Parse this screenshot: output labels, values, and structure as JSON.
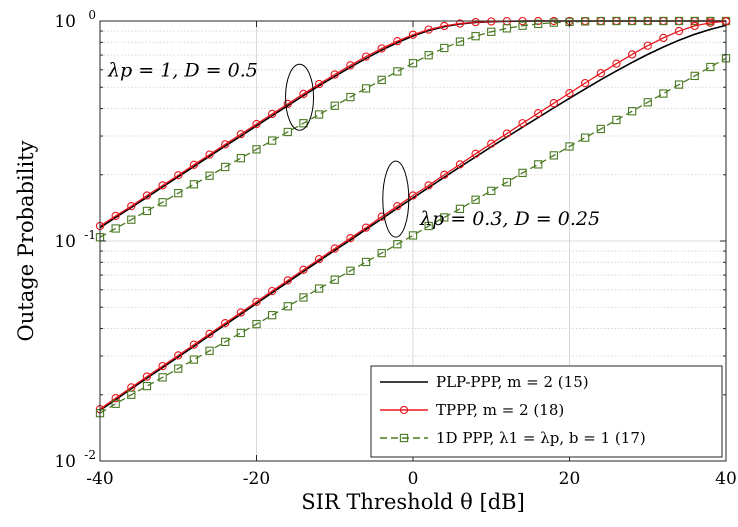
{
  "chart_data": {
    "type": "line",
    "title": "",
    "xlabel": "SIR Threshold θ [dB]",
    "ylabel": "Outage Probability",
    "xlim": [
      -40,
      40
    ],
    "ylim": [
      0.01,
      1
    ],
    "yscale": "log",
    "grid": true,
    "legend_position": "bottom-right",
    "x_ticks": [
      -40,
      -20,
      0,
      20,
      40
    ],
    "x_tick_labels": [
      "-40",
      "-20",
      "0",
      "20",
      "40"
    ],
    "y_ticks": [
      0.01,
      0.1,
      1
    ],
    "y_tick_labels": [
      {
        "base": "10",
        "exp": "-2"
      },
      {
        "base": "10",
        "exp": "-1"
      },
      {
        "base": "10",
        "exp": "0"
      }
    ],
    "annotations": [
      {
        "text": "λp = 1, D = 0.5",
        "x": -32,
        "y": 0.5
      },
      {
        "text": "λp = 0.3, D = 0.25",
        "x": 5,
        "y": 0.125
      }
    ],
    "series": [
      {
        "name": "PLP-PPP, m = 2 (15)",
        "group": "λp = 1, D = 0.5",
        "color": "#000000",
        "style": "solid",
        "marker": "none",
        "x": [
          -40,
          -38,
          -36,
          -34,
          -32,
          -30,
          -28,
          -26,
          -24,
          -22,
          -20,
          -18,
          -16,
          -14,
          -12,
          -10,
          -8,
          -6,
          -4,
          -2,
          0,
          2,
          4,
          6,
          8,
          10,
          12,
          14,
          16,
          18,
          20,
          22,
          24,
          26,
          28,
          30,
          32,
          34,
          36,
          38,
          40
        ],
        "values": [
          0.115,
          0.128,
          0.142,
          0.158,
          0.176,
          0.196,
          0.218,
          0.243,
          0.27,
          0.3,
          0.334,
          0.371,
          0.412,
          0.458,
          0.508,
          0.56,
          0.617,
          0.676,
          0.737,
          0.797,
          0.855,
          0.905,
          0.943,
          0.97,
          0.985,
          0.993,
          0.997,
          0.999,
          1,
          1,
          1,
          1,
          1,
          1,
          1,
          1,
          1,
          1,
          1,
          1,
          1
        ]
      },
      {
        "name": "TPPP, m = 2 (18)",
        "group": "λp = 1, D = 0.5",
        "color": "#e8161c",
        "style": "solid",
        "marker": "circle",
        "x": [
          -40,
          -38,
          -36,
          -34,
          -32,
          -30,
          -28,
          -26,
          -24,
          -22,
          -20,
          -18,
          -16,
          -14,
          -12,
          -10,
          -8,
          -6,
          -4,
          -2,
          0,
          2,
          4,
          6,
          8,
          10,
          12,
          14,
          16,
          18,
          20,
          22,
          24,
          26,
          28,
          30,
          32,
          34,
          36,
          38,
          40
        ],
        "values": [
          0.117,
          0.13,
          0.144,
          0.161,
          0.179,
          0.199,
          0.222,
          0.247,
          0.275,
          0.306,
          0.34,
          0.378,
          0.42,
          0.466,
          0.517,
          0.571,
          0.629,
          0.689,
          0.75,
          0.81,
          0.866,
          0.914,
          0.95,
          0.974,
          0.988,
          0.995,
          0.998,
          0.999,
          1,
          1,
          1,
          1,
          1,
          1,
          1,
          1,
          1,
          1,
          1,
          1,
          1
        ]
      },
      {
        "name": "1D PPP, λ1 = λp, b = 1 (17)",
        "group": "λp = 1, D = 0.5",
        "color": "#4a7a22",
        "style": "dashed",
        "marker": "square",
        "x": [
          -40,
          -38,
          -36,
          -34,
          -32,
          -30,
          -28,
          -26,
          -24,
          -22,
          -20,
          -18,
          -16,
          -14,
          -12,
          -10,
          -8,
          -6,
          -4,
          -2,
          0,
          2,
          4,
          6,
          8,
          10,
          12,
          14,
          16,
          18,
          20,
          22,
          24,
          26,
          28,
          30,
          32,
          34,
          36,
          38,
          40
        ],
        "values": [
          0.104,
          0.114,
          0.125,
          0.137,
          0.15,
          0.165,
          0.181,
          0.198,
          0.217,
          0.238,
          0.261,
          0.286,
          0.313,
          0.343,
          0.376,
          0.412,
          0.451,
          0.494,
          0.54,
          0.59,
          0.643,
          0.699,
          0.754,
          0.806,
          0.853,
          0.893,
          0.926,
          0.952,
          0.97,
          0.983,
          0.991,
          0.996,
          0.999,
          1,
          1,
          1,
          1,
          1,
          1,
          1,
          1
        ]
      },
      {
        "name": "PLP-PPP, m = 2 (15)",
        "group": "λp = 0.3, D = 0.25",
        "color": "#000000",
        "style": "solid",
        "marker": "none",
        "x": [
          -40,
          -38,
          -36,
          -34,
          -32,
          -30,
          -28,
          -26,
          -24,
          -22,
          -20,
          -18,
          -16,
          -14,
          -12,
          -10,
          -8,
          -6,
          -4,
          -2,
          0,
          2,
          4,
          6,
          8,
          10,
          12,
          14,
          16,
          18,
          20,
          22,
          24,
          26,
          28,
          30,
          32,
          34,
          36,
          38,
          40
        ],
        "values": [
          0.017,
          0.019,
          0.0213,
          0.0238,
          0.0266,
          0.0297,
          0.0332,
          0.0372,
          0.0416,
          0.0465,
          0.052,
          0.0582,
          0.065,
          0.0727,
          0.0812,
          0.0907,
          0.101,
          0.113,
          0.126,
          0.141,
          0.157,
          0.175,
          0.195,
          0.217,
          0.241,
          0.268,
          0.297,
          0.329,
          0.364,
          0.403,
          0.445,
          0.491,
          0.541,
          0.593,
          0.648,
          0.705,
          0.762,
          0.818,
          0.87,
          0.916,
          0.955
        ]
      },
      {
        "name": "TPPP, m = 2 (18)",
        "group": "λp = 0.3, D = 0.25",
        "color": "#e8161c",
        "style": "solid",
        "marker": "circle",
        "x": [
          -40,
          -38,
          -36,
          -34,
          -32,
          -30,
          -28,
          -26,
          -24,
          -22,
          -20,
          -18,
          -16,
          -14,
          -12,
          -10,
          -8,
          -6,
          -4,
          -2,
          0,
          2,
          4,
          6,
          8,
          10,
          12,
          14,
          16,
          18,
          20,
          22,
          24,
          26,
          28,
          30,
          32,
          34,
          36,
          38,
          40
        ],
        "values": [
          0.0172,
          0.0193,
          0.0216,
          0.0242,
          0.027,
          0.0302,
          0.0338,
          0.0378,
          0.0423,
          0.0473,
          0.0529,
          0.0592,
          0.0662,
          0.074,
          0.0827,
          0.0924,
          0.103,
          0.115,
          0.129,
          0.144,
          0.161,
          0.179,
          0.2,
          0.223,
          0.249,
          0.277,
          0.308,
          0.343,
          0.381,
          0.423,
          0.47,
          0.522,
          0.579,
          0.64,
          0.705,
          0.772,
          0.838,
          0.9,
          0.95,
          0.982,
          0.996
        ]
      },
      {
        "name": "1D PPP, λ1 = λp, b = 1 (17)",
        "group": "λp = 0.3, D = 0.25",
        "color": "#4a7a22",
        "style": "dashed",
        "marker": "square",
        "x": [
          -40,
          -38,
          -36,
          -34,
          -32,
          -30,
          -28,
          -26,
          -24,
          -22,
          -20,
          -18,
          -16,
          -14,
          -12,
          -10,
          -8,
          -6,
          -4,
          -2,
          0,
          2,
          4,
          6,
          8,
          10,
          12,
          14,
          16,
          18,
          20,
          22,
          24,
          26,
          28,
          30,
          32,
          34,
          36,
          38,
          40
        ],
        "values": [
          0.0165,
          0.0182,
          0.02,
          0.0219,
          0.024,
          0.0263,
          0.0289,
          0.0317,
          0.0348,
          0.0382,
          0.0419,
          0.046,
          0.0505,
          0.0554,
          0.0608,
          0.0667,
          0.0732,
          0.0803,
          0.0881,
          0.0967,
          0.106,
          0.117,
          0.128,
          0.14,
          0.154,
          0.169,
          0.185,
          0.204,
          0.223,
          0.245,
          0.269,
          0.295,
          0.323,
          0.355,
          0.389,
          0.427,
          0.468,
          0.514,
          0.563,
          0.618,
          0.677
        ]
      }
    ]
  },
  "legend": {
    "items": [
      {
        "label": "PLP-PPP, m = 2 (15)",
        "color": "#000000",
        "style": "solid",
        "marker": "none"
      },
      {
        "label": "TPPP, m = 2 (18)",
        "color": "#e8161c",
        "style": "solid",
        "marker": "circle"
      },
      {
        "label": "1D PPP, λ1 = λp, b = 1 (17)",
        "color": "#4a7a22",
        "style": "dashed",
        "marker": "square"
      }
    ]
  },
  "colors": {
    "grid": "#cfcfcf",
    "axis": "#262626",
    "background": "#ffffff"
  }
}
